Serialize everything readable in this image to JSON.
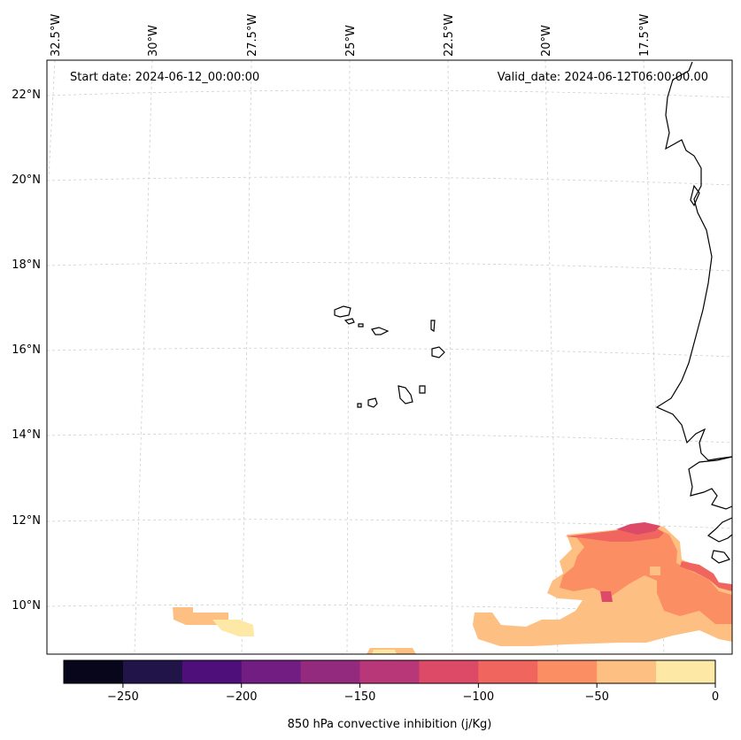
{
  "map": {
    "start_date_text": "Start date: 2024-06-12_00:00:00",
    "valid_date_text": "Valid_date: 2024-06-12T06:00:00.00",
    "lon_labels": [
      "32.5°W",
      "30°W",
      "27.5°W",
      "25°W",
      "22.5°W",
      "20°W",
      "17.5°W"
    ],
    "lat_labels": [
      "22°N",
      "20°N",
      "18°N",
      "16°N",
      "14°N",
      "12°N",
      "10°N"
    ],
    "variable": "850 hPa convective inhibition",
    "units": "j/Kg"
  },
  "colorbar": {
    "label": "850 hPa convective inhibition (j/Kg)",
    "tick_labels": [
      "−250",
      "−200",
      "−150",
      "−100",
      "−50",
      "0"
    ],
    "tick_values": [
      -250,
      -200,
      -150,
      -100,
      -50,
      0
    ],
    "levels": [
      -275,
      -250,
      -225,
      -200,
      -175,
      -150,
      -125,
      -100,
      -75,
      -50,
      -25,
      0
    ],
    "colors": [
      "#07061b",
      "#211448",
      "#4e0f7a",
      "#721d81",
      "#932a7e",
      "#b83778",
      "#dd4a68",
      "#f1655f",
      "#fc8e63",
      "#fdbf82",
      "#fde8a5"
    ]
  }
}
